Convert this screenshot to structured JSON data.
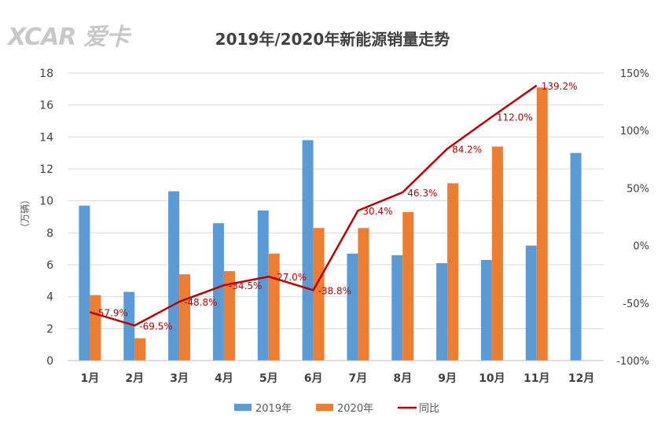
{
  "watermark": "XCAR 爱卡",
  "chart_data": {
    "type": "bar+line",
    "title": "2019年/2020年新能源销量走势",
    "ylabel": "（万辆）",
    "categories": [
      "1月",
      "2月",
      "3月",
      "4月",
      "5月",
      "6月",
      "7月",
      "8月",
      "9月",
      "10月",
      "11月",
      "12月"
    ],
    "ylim": [
      0,
      18
    ],
    "y_ticks": [
      0,
      2,
      4,
      6,
      8,
      10,
      12,
      14,
      16,
      18
    ],
    "y2lim": [
      -100,
      150
    ],
    "y2_ticks": [
      -100,
      -50,
      0,
      50,
      100,
      150
    ],
    "y2_tick_labels": [
      "-100%",
      "-50%",
      "0%",
      "50%",
      "100%",
      "150%"
    ],
    "series": [
      {
        "name": "2019年",
        "kind": "bar",
        "color": "#5b9bd5",
        "values": [
          9.7,
          4.3,
          10.6,
          8.6,
          9.4,
          13.8,
          6.7,
          6.6,
          6.1,
          6.3,
          7.2,
          13.0
        ]
      },
      {
        "name": "2020年",
        "kind": "bar",
        "color": "#ed7d31",
        "values": [
          4.1,
          1.4,
          5.4,
          5.6,
          6.7,
          8.3,
          8.3,
          9.3,
          11.1,
          13.4,
          17.1,
          null
        ]
      },
      {
        "name": "同比",
        "kind": "line",
        "axis": "right",
        "color": "#c00000",
        "values": [
          -57.9,
          -69.5,
          -48.8,
          -34.5,
          -27.0,
          -38.8,
          30.4,
          46.3,
          84.2,
          112.0,
          139.2,
          null
        ],
        "labels": [
          "-57.9%",
          "-69.5%",
          "-48.8%",
          "-34.5%",
          "-27.0%",
          "-38.8%",
          "30.4%",
          "46.3%",
          "84.2%",
          "112.0%",
          "139.2%",
          ""
        ]
      }
    ],
    "legend": [
      "2019年",
      "2020年",
      "同比"
    ],
    "legend_position": "bottom",
    "grid": true
  }
}
